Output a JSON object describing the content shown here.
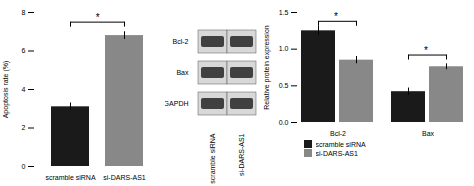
{
  "chart_data": [
    {
      "type": "bar",
      "categories": [
        "scramble siRNA",
        "si-DARS-AS1"
      ],
      "values": [
        3.1,
        6.8
      ],
      "errors": [
        0.2,
        0.2
      ],
      "colors": [
        "#1a1a1a",
        "#888888"
      ],
      "ylabel": "Apoptosis rate (%)",
      "ylim": [
        0,
        8
      ],
      "yticks": [
        0,
        2,
        4,
        6,
        8
      ],
      "annotations": [
        {
          "text": "*",
          "y": 7.5
        }
      ]
    },
    {
      "type": "western_blot",
      "categories": [
        "scramble siRNA",
        "si-DARS-AS1"
      ],
      "annotations": [
        "Bcl-2",
        "Bax",
        "GAPDH"
      ]
    },
    {
      "type": "bar",
      "categories": [
        "Bcl-2",
        "Bax"
      ],
      "series": [
        {
          "name": "scramble siRNA",
          "color": "#1a1a1a",
          "values": [
            1.25,
            0.42
          ],
          "errors": [
            0.06,
            0.05
          ]
        },
        {
          "name": "si-DARS-AS1",
          "color": "#888888",
          "values": [
            0.85,
            0.76
          ],
          "errors": [
            0.05,
            0.04
          ]
        }
      ],
      "ylabel": "Relative protein expression",
      "ylim": [
        0,
        1.5
      ],
      "yticks": [
        {
          "value": 0,
          "label": "0.0"
        },
        0.5,
        {
          "value": 1,
          "label": "1.0"
        },
        1.5
      ],
      "legend": "lower left",
      "annotations": [
        {
          "text": "*",
          "category": "Bcl-2",
          "y": 1.38
        },
        {
          "text": "*",
          "category": "Bax",
          "y": 0.92
        }
      ]
    }
  ]
}
